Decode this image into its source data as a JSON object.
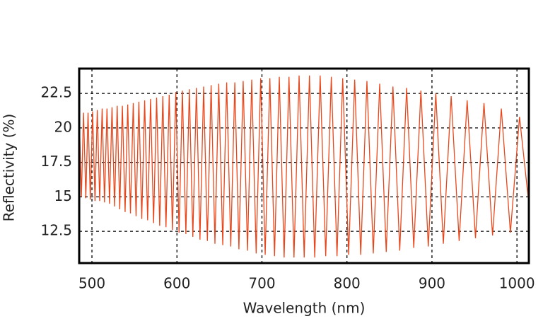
{
  "chart_data": {
    "type": "line",
    "xlabel": "Wavelength (nm)",
    "ylabel": "Reflectivity (%)",
    "x": [
      485.0,
      487.6,
      490.1,
      492.8,
      495.4,
      498.1,
      500.8,
      503.6,
      506.3,
      509.1,
      512.0,
      514.8,
      517.7,
      520.7,
      523.6,
      526.6,
      529.7,
      532.7,
      535.8,
      539.0,
      542.1,
      545.3,
      548.6,
      551.9,
      555.2,
      558.6,
      562.0,
      565.5,
      569.0,
      572.5,
      576.1,
      579.7,
      583.4,
      587.1,
      590.9,
      594.7,
      598.6,
      602.5,
      606.4,
      610.5,
      614.6,
      618.7,
      622.9,
      627.1,
      631.4,
      635.8,
      640.2,
      644.7,
      649.2,
      653.9,
      658.5,
      663.3,
      668.1,
      672.9,
      677.9,
      683.0,
      688.0,
      693.2,
      698.5,
      703.8,
      709.3,
      714.8,
      720.4,
      726.1,
      731.8,
      737.7,
      743.7,
      749.7,
      755.9,
      762.1,
      768.5,
      775.0,
      781.6,
      788.3,
      795.0,
      802.0,
      809.1,
      816.2,
      823.5,
      831.0,
      838.5,
      846.2,
      854.1,
      862.1,
      870.2,
      878.6,
      887.0,
      895.7,
      904.5,
      913.4,
      922.6,
      932.0,
      941.4,
      951.2,
      961.2,
      971.3,
      981.6,
      992.3,
      1003.0,
      1014.0
    ],
    "values": [
      21.0,
      15.0,
      21.1,
      14.9,
      21.1,
      14.8,
      21.2,
      14.7,
      21.3,
      14.7,
      21.4,
      14.6,
      21.4,
      14.5,
      21.5,
      14.3,
      21.6,
      14.1,
      21.6,
      13.9,
      21.7,
      13.8,
      21.8,
      13.6,
      21.9,
      13.4,
      22.0,
      13.3,
      22.1,
      13.1,
      22.2,
      12.9,
      22.3,
      12.8,
      22.4,
      12.6,
      22.6,
      12.4,
      22.7,
      12.3,
      22.8,
      12.1,
      22.9,
      11.9,
      23.0,
      11.8,
      23.1,
      11.6,
      23.2,
      11.5,
      23.3,
      11.4,
      23.3,
      11.2,
      23.4,
      11.1,
      23.5,
      10.9,
      23.6,
      10.8,
      23.6,
      10.7,
      23.7,
      10.6,
      23.7,
      10.6,
      23.8,
      10.6,
      23.8,
      10.6,
      23.8,
      10.7,
      23.7,
      10.7,
      23.6,
      10.8,
      23.5,
      10.8,
      23.4,
      10.9,
      23.2,
      11.0,
      23.0,
      11.1,
      22.9,
      11.3,
      22.7,
      11.4,
      22.5,
      11.6,
      22.3,
      11.8,
      22.0,
      12.0,
      21.8,
      12.2,
      21.4,
      12.4,
      20.8,
      14.5
    ],
    "color": "#e8471c",
    "xlim": [
      485,
      1014
    ],
    "ylim": [
      10.2,
      24.3
    ],
    "xticks": [
      500,
      600,
      700,
      800,
      900,
      1000
    ],
    "yticks": [
      12.5,
      15,
      17.5,
      20,
      22.5
    ],
    "grid": true
  }
}
